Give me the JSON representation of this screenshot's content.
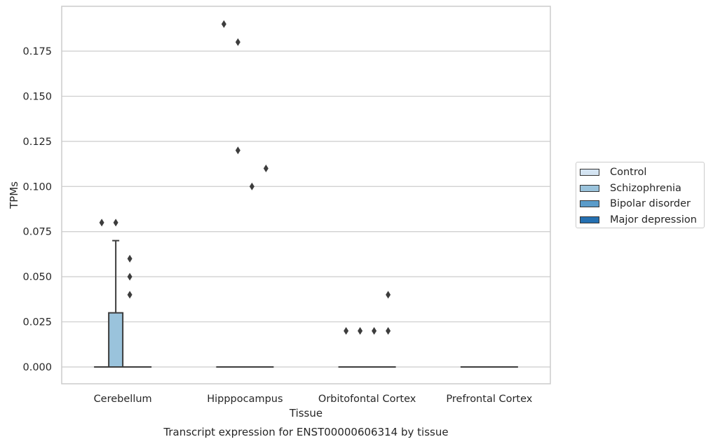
{
  "chart_data": {
    "type": "box",
    "title": "Transcript expression for ENST00000606314 by tissue",
    "xlabel": "Tissue",
    "ylabel": "TPMs",
    "ylim": [
      -0.0095,
      0.1985
    ],
    "yticks": [
      0.0,
      0.025,
      0.05,
      0.075,
      0.1,
      0.125,
      0.15,
      0.175
    ],
    "ytick_labels": [
      "0.000",
      "0.025",
      "0.050",
      "0.075",
      "0.100",
      "0.125",
      "0.150",
      "0.175"
    ],
    "categories": [
      "Cerebellum",
      "Hipppocampus",
      "Orbitofontal Cortex",
      "Prefrontal Cortex"
    ],
    "grid": true,
    "legend_position": "right",
    "series": [
      {
        "name": "Control",
        "color": "#d4e4f2",
        "boxes": [
          {
            "q1": 0,
            "median": 0,
            "q3": 0,
            "whisker_low": 0,
            "whisker_high": 0,
            "outliers": [
              0.08
            ]
          },
          {
            "q1": 0,
            "median": 0,
            "q3": 0,
            "whisker_low": 0,
            "whisker_high": 0,
            "outliers": [
              0.19
            ]
          },
          {
            "q1": 0,
            "median": 0,
            "q3": 0,
            "whisker_low": 0,
            "whisker_high": 0,
            "outliers": [
              0.02
            ]
          },
          {
            "q1": 0,
            "median": 0,
            "q3": 0,
            "whisker_low": 0,
            "whisker_high": 0,
            "outliers": []
          }
        ]
      },
      {
        "name": "Schizophrenia",
        "color": "#9ac3dc",
        "boxes": [
          {
            "q1": 0,
            "median": 0,
            "q3": 0.03,
            "whisker_low": 0,
            "whisker_high": 0.07,
            "outliers": [
              0.08
            ]
          },
          {
            "q1": 0,
            "median": 0,
            "q3": 0,
            "whisker_low": 0,
            "whisker_high": 0,
            "outliers": [
              0.18,
              0.12
            ]
          },
          {
            "q1": 0,
            "median": 0,
            "q3": 0,
            "whisker_low": 0,
            "whisker_high": 0,
            "outliers": [
              0.02
            ]
          },
          {
            "q1": 0,
            "median": 0,
            "q3": 0,
            "whisker_low": 0,
            "whisker_high": 0,
            "outliers": []
          }
        ]
      },
      {
        "name": "Bipolar disorder",
        "color": "#5a9bc9",
        "boxes": [
          {
            "q1": 0,
            "median": 0,
            "q3": 0,
            "whisker_low": 0,
            "whisker_high": 0,
            "outliers": [
              0.06,
              0.05,
              0.04
            ]
          },
          {
            "q1": 0,
            "median": 0,
            "q3": 0,
            "whisker_low": 0,
            "whisker_high": 0,
            "outliers": [
              0.1
            ]
          },
          {
            "q1": 0,
            "median": 0,
            "q3": 0,
            "whisker_low": 0,
            "whisker_high": 0,
            "outliers": [
              0.02
            ]
          },
          {
            "q1": 0,
            "median": 0,
            "q3": 0,
            "whisker_low": 0,
            "whisker_high": 0,
            "outliers": []
          }
        ]
      },
      {
        "name": "Major depression",
        "color": "#2570b1",
        "boxes": [
          {
            "q1": 0,
            "median": 0,
            "q3": 0,
            "whisker_low": 0,
            "whisker_high": 0,
            "outliers": []
          },
          {
            "q1": 0,
            "median": 0,
            "q3": 0,
            "whisker_low": 0,
            "whisker_high": 0,
            "outliers": [
              0.11
            ]
          },
          {
            "q1": 0,
            "median": 0,
            "q3": 0,
            "whisker_low": 0,
            "whisker_high": 0,
            "outliers": [
              0.04,
              0.02
            ]
          },
          {
            "q1": 0,
            "median": 0,
            "q3": 0,
            "whisker_low": 0,
            "whisker_high": 0,
            "outliers": []
          }
        ]
      }
    ]
  }
}
